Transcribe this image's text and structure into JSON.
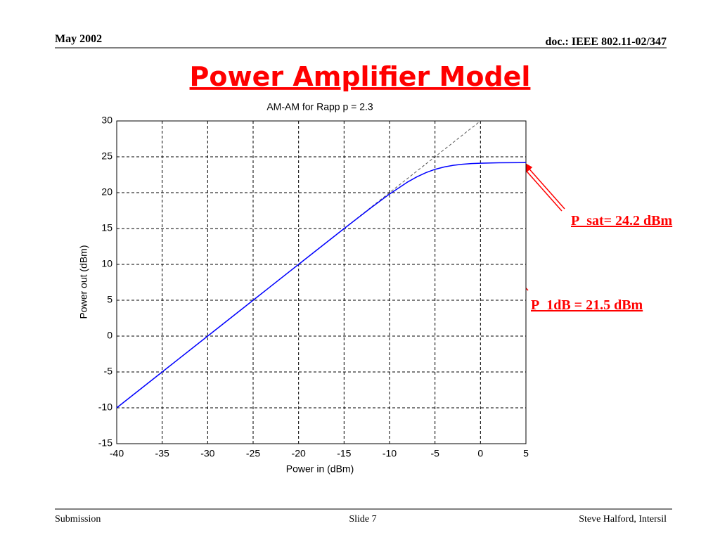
{
  "slide": {
    "date": "May 2002",
    "doc": "doc.: IEEE 802.11-02/347",
    "title": "Power Amplifier Model",
    "footer_left": "Submission",
    "footer_center": "Slide 7",
    "footer_right": "Steve Halford, Intersil"
  },
  "chart_data": {
    "type": "line",
    "title": "AM-AM for Rapp p = 2.3",
    "x_label": "Power in (dBm)",
    "y_label": "Power out (dBm)",
    "x": [
      -40,
      -35,
      -30,
      -25,
      -20,
      -15,
      -12,
      -10,
      -8,
      -7,
      -6,
      -5,
      -4,
      -3,
      -2,
      -1,
      0,
      2,
      5
    ],
    "series": [
      {
        "color": "#555555",
        "dashed": true,
        "values": [
          -10,
          -5,
          0,
          5,
          10,
          15,
          18,
          20,
          22,
          23,
          24,
          25,
          26,
          27,
          28,
          29,
          30,
          null,
          null
        ]
      },
      {
        "color": "#0000ff",
        "dashed": false,
        "values": [
          -10,
          -5,
          0,
          5,
          10,
          14.99,
          17.93,
          19.81,
          21.49,
          22.2,
          22.79,
          23.25,
          23.58,
          23.81,
          23.96,
          24.06,
          24.11,
          24.17,
          24.19
        ]
      }
    ],
    "xlim": [
      -40,
      5
    ],
    "ylim": [
      -15,
      30
    ],
    "xticks": [
      -40,
      -35,
      -30,
      -25,
      -20,
      -15,
      -10,
      -5,
      0,
      5
    ],
    "yticks": [
      -15,
      -10,
      -5,
      0,
      5,
      10,
      15,
      20,
      25,
      30
    ],
    "grid": true,
    "annotations": [
      "P_sat= 24.2 dBm",
      "P_1dB = 21.5 dBm"
    ]
  }
}
